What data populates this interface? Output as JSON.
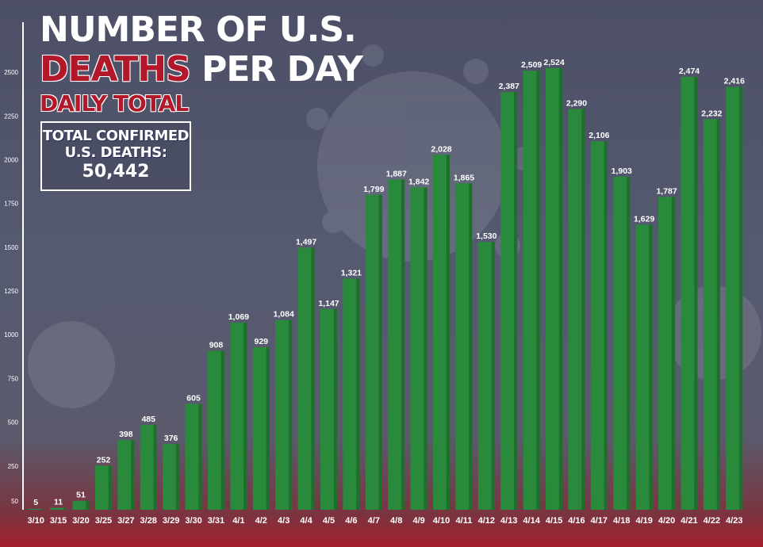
{
  "header": {
    "title_line1": "NUMBER OF U.S.",
    "title_line2_red": "DEATHS",
    "title_line2_white": " PER DAY",
    "subtitle": "DAILY TOTAL"
  },
  "total_box": {
    "line1": "TOTAL CONFIRMED",
    "line2": "U.S. DEATHS:",
    "value": "50,442"
  },
  "colors": {
    "bar": "#2a8a3c",
    "bar_dark": "#1f6e2e",
    "accent_red": "#b3182a",
    "text": "#ffffff"
  },
  "chart_data": {
    "type": "bar",
    "categories": [
      "3/10",
      "3/15",
      "3/20",
      "3/25",
      "3/27",
      "3/28",
      "3/29",
      "3/30",
      "3/31",
      "4/1",
      "4/2",
      "4/3",
      "4/4",
      "4/5",
      "4/6",
      "4/7",
      "4/8",
      "4/9",
      "4/10",
      "4/11",
      "4/12",
      "4/13",
      "4/14",
      "4/15",
      "4/16",
      "4/17",
      "4/18",
      "4/19",
      "4/20",
      "4/21",
      "4/22",
      "4/23"
    ],
    "values": [
      5,
      11,
      51,
      252,
      398,
      485,
      376,
      605,
      908,
      1069,
      929,
      1084,
      1497,
      1147,
      1321,
      1799,
      1887,
      1842,
      2028,
      1865,
      1530,
      2387,
      2509,
      2524,
      2290,
      2106,
      1903,
      1629,
      1787,
      2474,
      2232,
      2416
    ],
    "data_labels": [
      "5",
      "11",
      "51",
      "252",
      "398",
      "485",
      "376",
      "605",
      "908",
      "1,069",
      "929",
      "1,084",
      "1,497",
      "1,147",
      "1,321",
      "1,799",
      "1,887",
      "1,842",
      "2,028",
      "1,865",
      "1,530",
      "2,387",
      "2,509",
      "2,524",
      "2,290",
      "2,106",
      "1,903",
      "1,629",
      "1,787",
      "2,474",
      "2,232",
      "2,416"
    ],
    "y_ticks": [
      50,
      250,
      500,
      750,
      1000,
      1250,
      1500,
      1750,
      2000,
      2250,
      2500
    ],
    "ylim": [
      0,
      2650
    ],
    "title": "NUMBER OF U.S. DEATHS PER DAY",
    "xlabel": "",
    "ylabel": "",
    "grid": false
  }
}
